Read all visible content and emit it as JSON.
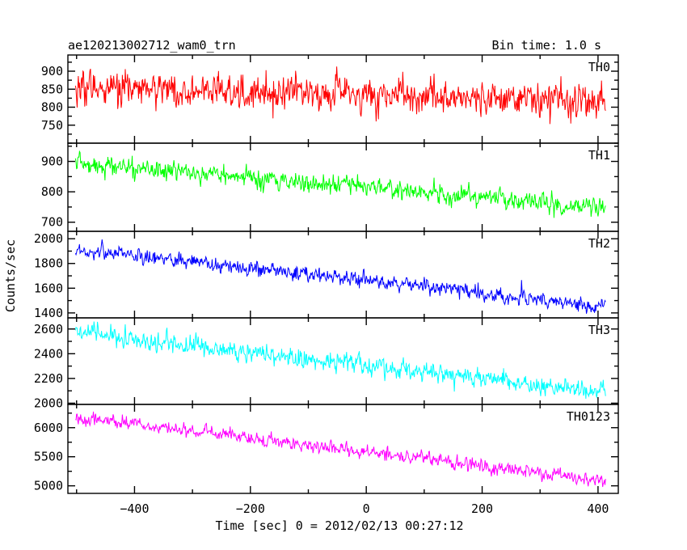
{
  "header": {
    "title": "ae120213002712_wam0_trn",
    "bin_time": "Bin time: 1.0 s"
  },
  "chart_data": {
    "type": "line",
    "xlabel": "Time [sec] 0 = 2012/02/13 00:27:12",
    "ylabel": "Counts/sec",
    "xlim": [
      -515,
      435
    ],
    "x_ticks": [
      -400,
      -200,
      0,
      200,
      400
    ],
    "x_tick_labels": [
      "−400",
      "−200",
      "0",
      "200",
      "400"
    ],
    "x_start": -502,
    "x_end": 413,
    "grid": false,
    "panels": [
      {
        "name": "TH0",
        "color": "#ff0000",
        "ylim": [
          700,
          945
        ],
        "y_ticks": [
          750,
          800,
          850,
          900
        ],
        "y_tick_labels": [
          "750",
          "800",
          "850",
          "900"
        ],
        "trend_start": 855,
        "trend_end": 818,
        "noise": 32
      },
      {
        "name": "TH1",
        "color": "#00ff00",
        "ylim": [
          670,
          960
        ],
        "y_ticks": [
          700,
          800,
          900
        ],
        "y_tick_labels": [
          "700",
          "800",
          "900"
        ],
        "trend_start": 895,
        "trend_end": 745,
        "noise": 22
      },
      {
        "name": "TH2",
        "color": "#0000ff",
        "ylim": [
          1360,
          2060
        ],
        "y_ticks": [
          1400,
          1600,
          1800,
          2000
        ],
        "y_tick_labels": [
          "1400",
          "1600",
          "1800",
          "2000"
        ],
        "trend_start": 1915,
        "trend_end": 1450,
        "noise": 42
      },
      {
        "name": "TH3",
        "color": "#00ffff",
        "ylim": [
          1990,
          2690
        ],
        "y_ticks": [
          2000,
          2200,
          2400,
          2600
        ],
        "y_tick_labels": [
          "2000",
          "2200",
          "2400",
          "2600"
        ],
        "trend_start": 2570,
        "trend_end": 2080,
        "noise": 52
      },
      {
        "name": "TH0123",
        "color": "#ff00ff",
        "ylim": [
          4870,
          6400
        ],
        "y_ticks": [
          5000,
          5500,
          6000
        ],
        "y_tick_labels": [
          "5000",
          "5500",
          "6000"
        ],
        "trend_start": 6180,
        "trend_end": 5080,
        "noise": 75
      }
    ]
  }
}
